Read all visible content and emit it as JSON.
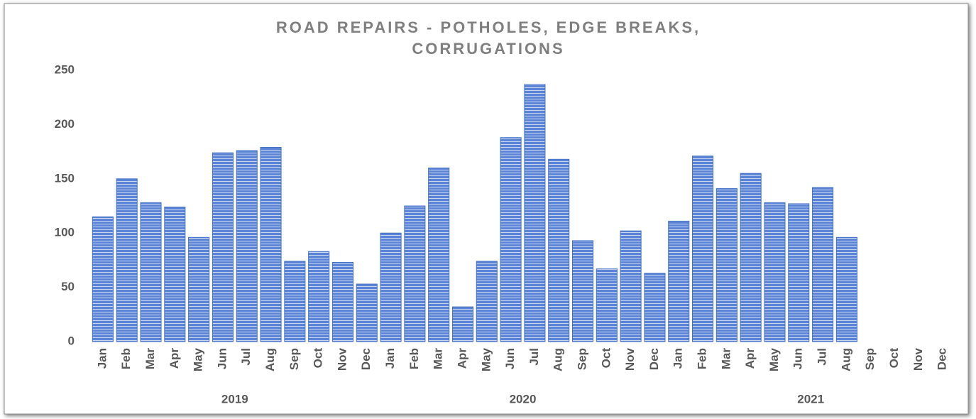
{
  "chart_data": {
    "type": "bar",
    "title": [
      "ROAD REPAIRS - POTHOLES, EDGE BREAKS,",
      "CORRUGATIONS"
    ],
    "categories": [
      "Jan",
      "Feb",
      "Mar",
      "Apr",
      "May",
      "Jun",
      "Jul",
      "Aug",
      "Sep",
      "Oct",
      "Nov",
      "Dec",
      "Jan",
      "Feb",
      "Mar",
      "Apr",
      "May",
      "Jun",
      "Jul",
      "Aug",
      "Sep",
      "Oct",
      "Nov",
      "Dec",
      "Jan",
      "Feb",
      "Mar",
      "Apr",
      "May",
      "Jun",
      "Jul",
      "Aug",
      "Sep",
      "Oct",
      "Nov",
      "Dec"
    ],
    "years": [
      "2019",
      "2020",
      "2021"
    ],
    "values": [
      115,
      150,
      128,
      124,
      96,
      174,
      176,
      179,
      74,
      83,
      73,
      53,
      100,
      125,
      160,
      32,
      74,
      188,
      237,
      168,
      93,
      67,
      102,
      63,
      111,
      171,
      141,
      155,
      128,
      127,
      142,
      96,
      null,
      null,
      null,
      null
    ],
    "color": "#4472c4",
    "ylim": [
      0,
      250
    ],
    "yticks": [
      0,
      50,
      100,
      150,
      200,
      250
    ],
    "grid": false
  }
}
